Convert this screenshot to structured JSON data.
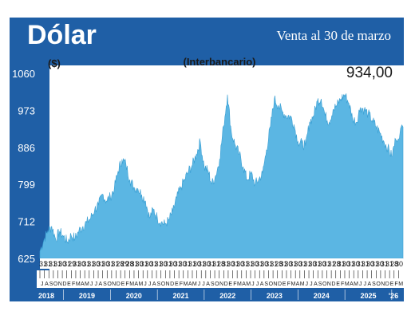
{
  "header": {
    "title": "Dólar",
    "subtitle": "Venta al 30 de marzo"
  },
  "colors": {
    "frame": "#1f5fa6",
    "area": "#5bb6e3",
    "area_stroke": "#3a9fd3",
    "band": "#ffffff"
  },
  "chart_data": {
    "type": "area",
    "title": "",
    "subtitle": "(Interbancario)",
    "ylabel": "($)",
    "xlabel": "",
    "ylim": [
      625,
      1060
    ],
    "yticks": [
      "1060",
      "973",
      "886",
      "799",
      "712",
      "625"
    ],
    "last_value_label": "934,00",
    "grid": false,
    "legend": "none",
    "day_labels": [
      "31",
      "31",
      "31",
      "31",
      "30",
      "31",
      "29",
      "31",
      "30",
      "31",
      "31",
      "30",
      "31",
      "30",
      "31",
      "31",
      "28",
      "29",
      "28",
      "31",
      "30",
      "31",
      "30",
      "31",
      "31",
      "30",
      "31",
      "30",
      "31",
      "30",
      "31",
      "31",
      "30",
      "31",
      "30",
      "31",
      "31",
      "28",
      "31",
      "30",
      "31",
      "30",
      "31",
      "31",
      "30",
      "31",
      "30",
      "31",
      "31",
      "28",
      "31",
      "30",
      "31",
      "30",
      "31",
      "31",
      "30",
      "31",
      "30",
      "31",
      "31",
      "28",
      "31",
      "30",
      "31",
      "30",
      "31",
      "31",
      "30",
      "31",
      "30",
      "31",
      "31",
      "28",
      "30"
    ],
    "month_labels": [
      "J",
      "A",
      "S",
      "O",
      "N",
      "D",
      "E",
      "F",
      "M",
      "A",
      "M",
      "J",
      "J",
      "A",
      "S",
      "O",
      "N",
      "D",
      "E",
      "F",
      "M",
      "A",
      "M",
      "J",
      "J",
      "A",
      "S",
      "O",
      "N",
      "D",
      "E",
      "F",
      "M",
      "A",
      "M",
      "J",
      "J",
      "A",
      "S",
      "O",
      "N",
      "D",
      "E",
      "F",
      "M",
      "A",
      "M",
      "J",
      "J",
      "A",
      "S",
      "O",
      "N",
      "D",
      "E",
      "F",
      "M",
      "A",
      "M",
      "J",
      "J",
      "A",
      "S",
      "O",
      "N",
      "D",
      "E",
      "F",
      "M",
      "A",
      "M",
      "J",
      "J",
      "A",
      "S",
      "O",
      "N",
      "D",
      "E",
      "F",
      "M"
    ],
    "year_labels": [
      "2018",
      "2019",
      "2020",
      "2021",
      "2022",
      "2023",
      "2024",
      "2025",
      "'26"
    ],
    "x_range": [
      "2018-07-01",
      "2026-03-30"
    ],
    "series": [
      {
        "x": [
          "2018-07-01",
          "2018-08-01",
          "2018-09-01",
          "2018-10-01",
          "2018-11-01",
          "2018-12-01",
          "2019-01-01",
          "2019-02-01",
          "2019-03-01",
          "2019-04-01",
          "2019-05-01",
          "2019-06-01",
          "2019-07-01",
          "2019-08-01",
          "2019-09-01",
          "2019-10-01",
          "2019-11-01",
          "2019-12-01",
          "2020-01-01",
          "2020-02-01",
          "2020-03-01",
          "2020-04-01",
          "2020-05-01",
          "2020-06-01",
          "2020-07-01",
          "2020-08-01",
          "2020-09-01",
          "2020-10-01",
          "2020-11-01",
          "2020-12-01",
          "2021-01-01",
          "2021-02-01",
          "2021-03-01",
          "2021-04-01",
          "2021-05-01",
          "2021-06-01",
          "2021-07-01",
          "2021-08-01",
          "2021-09-01",
          "2021-10-01",
          "2021-11-01",
          "2021-12-01",
          "2022-01-01",
          "2022-02-01",
          "2022-03-01",
          "2022-04-01",
          "2022-05-01",
          "2022-06-01",
          "2022-07-01",
          "2022-08-01",
          "2022-09-01",
          "2022-10-01",
          "2022-11-01",
          "2022-12-01",
          "2023-01-01",
          "2023-02-01",
          "2023-03-01",
          "2023-04-01",
          "2023-05-01",
          "2023-06-01",
          "2023-07-01",
          "2023-08-01",
          "2023-09-01",
          "2023-10-01",
          "2023-11-01",
          "2023-12-01",
          "2024-01-01",
          "2024-02-01",
          "2024-03-01",
          "2024-04-01",
          "2024-05-01",
          "2024-06-01",
          "2024-07-01",
          "2024-08-01",
          "2024-09-01",
          "2024-10-01",
          "2024-11-01",
          "2024-12-01",
          "2025-01-01",
          "2025-02-01",
          "2025-03-01",
          "2025-04-01",
          "2025-05-01",
          "2025-06-01",
          "2025-07-01",
          "2025-08-01",
          "2025-09-01",
          "2025-10-01",
          "2025-11-01",
          "2025-12-01",
          "2026-01-01",
          "2026-02-01",
          "2026-03-30"
        ],
        "y": [
          642,
          668,
          690,
          700,
          670,
          688,
          676,
          664,
          680,
          672,
          690,
          700,
          710,
          720,
          740,
          750,
          776,
          760,
          770,
          790,
          830,
          858,
          846,
          810,
          792,
          790,
          775,
          760,
          720,
          740,
          720,
          710,
          705,
          715,
          735,
          768,
          790,
          810,
          830,
          845,
          870,
          900,
          840,
          830,
          800,
          820,
          858,
          936,
          1010,
          920,
          890,
          870,
          840,
          810,
          825,
          800,
          810,
          825,
          880,
          935,
          1000,
          985,
          970,
          960,
          960,
          940,
          900,
          895,
          890,
          945,
          960,
          995,
          1000,
          960,
          945,
          975,
          985,
          1000,
          1010,
          990,
          955,
          945,
          980,
          975,
          965,
          950,
          935,
          920,
          900,
          885,
          865,
          905,
          934
        ]
      }
    ]
  }
}
